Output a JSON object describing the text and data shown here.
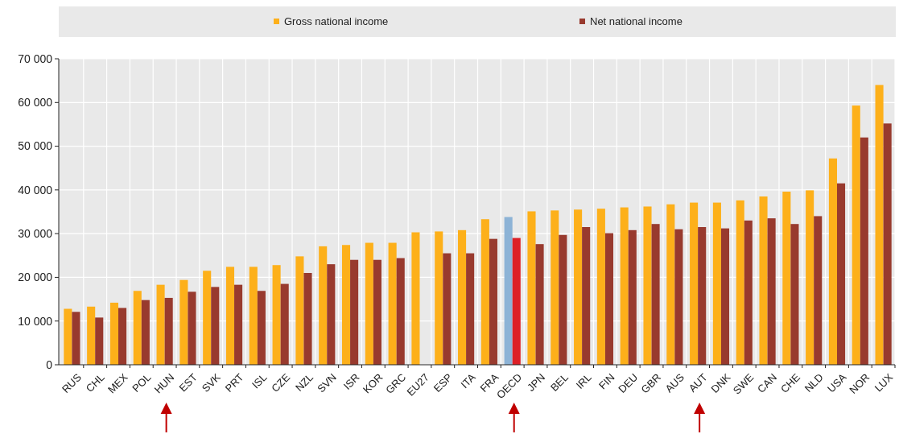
{
  "chart_data": {
    "type": "bar",
    "categories": [
      "RUS",
      "CHL",
      "MEX",
      "POL",
      "HUN",
      "EST",
      "SVK",
      "PRT",
      "ISL",
      "CZE",
      "NZL",
      "SVN",
      "ISR",
      "KOR",
      "GRC",
      "EU27",
      "ESP",
      "ITA",
      "FRA",
      "OECD",
      "JPN",
      "BEL",
      "IRL",
      "FIN",
      "DEU",
      "GBR",
      "AUS",
      "AUT",
      "DNK",
      "SWE",
      "CAN",
      "CHE",
      "NLD",
      "USA",
      "NOR",
      "LUX"
    ],
    "series": [
      {
        "name": "Gross national income",
        "color": "#fdb01a",
        "colors": [
          "#fdb01a",
          "#fdb01a",
          "#fdb01a",
          "#fdb01a",
          "#fdb01a",
          "#fdb01a",
          "#fdb01a",
          "#fdb01a",
          "#fdb01a",
          "#fdb01a",
          "#fdb01a",
          "#fdb01a",
          "#fdb01a",
          "#fdb01a",
          "#fdb01a",
          "#fdb01a",
          "#fdb01a",
          "#fdb01a",
          "#fdb01a",
          "#8db3d6",
          "#fdb01a",
          "#fdb01a",
          "#fdb01a",
          "#fdb01a",
          "#fdb01a",
          "#fdb01a",
          "#fdb01a",
          "#fdb01a",
          "#fdb01a",
          "#fdb01a",
          "#fdb01a",
          "#fdb01a",
          "#fdb01a",
          "#fdb01a",
          "#fdb01a",
          "#fdb01a"
        ],
        "values": [
          12800,
          13300,
          14200,
          16900,
          18300,
          19400,
          21500,
          22400,
          22400,
          22800,
          24800,
          27100,
          27400,
          27900,
          27900,
          30300,
          30500,
          30800,
          33300,
          33800,
          35100,
          35300,
          35500,
          35700,
          36000,
          36200,
          36700,
          37100,
          37100,
          37600,
          38500,
          39600,
          39900,
          47200,
          59300,
          64000
        ]
      },
      {
        "name": "Net national income",
        "color": "#983a2e",
        "colors": [
          "#983a2e",
          "#983a2e",
          "#983a2e",
          "#983a2e",
          "#983a2e",
          "#983a2e",
          "#983a2e",
          "#983a2e",
          "#983a2e",
          "#983a2e",
          "#983a2e",
          "#983a2e",
          "#983a2e",
          "#983a2e",
          "#983a2e",
          "#983a2e",
          "#983a2e",
          "#983a2e",
          "#983a2e",
          "#dd2027",
          "#983a2e",
          "#983a2e",
          "#983a2e",
          "#983a2e",
          "#983a2e",
          "#983a2e",
          "#983a2e",
          "#983a2e",
          "#983a2e",
          "#983a2e",
          "#983a2e",
          "#983a2e",
          "#983a2e",
          "#983a2e",
          "#983a2e",
          "#983a2e"
        ],
        "values": [
          12100,
          10800,
          13000,
          14800,
          15300,
          16700,
          17800,
          18300,
          16900,
          18500,
          21000,
          23000,
          24000,
          24000,
          24400,
          null,
          25500,
          25500,
          28800,
          29000,
          27600,
          29700,
          31500,
          30100,
          30800,
          32200,
          31000,
          31500,
          31200,
          33000,
          33500,
          32200,
          34000,
          41500,
          52000,
          55200
        ]
      }
    ],
    "ylim": [
      0,
      70000
    ],
    "yticks": [
      {
        "value": 0,
        "label": "0"
      },
      {
        "value": 10000,
        "label": "10 000"
      },
      {
        "value": 20000,
        "label": "20 000"
      },
      {
        "value": 30000,
        "label": "30 000"
      },
      {
        "value": 40000,
        "label": "40 000"
      },
      {
        "value": 50000,
        "label": "50 000"
      },
      {
        "value": 60000,
        "label": "60 000"
      },
      {
        "value": 70000,
        "label": "70 000"
      }
    ],
    "grid": true,
    "legend": "top"
  }
}
